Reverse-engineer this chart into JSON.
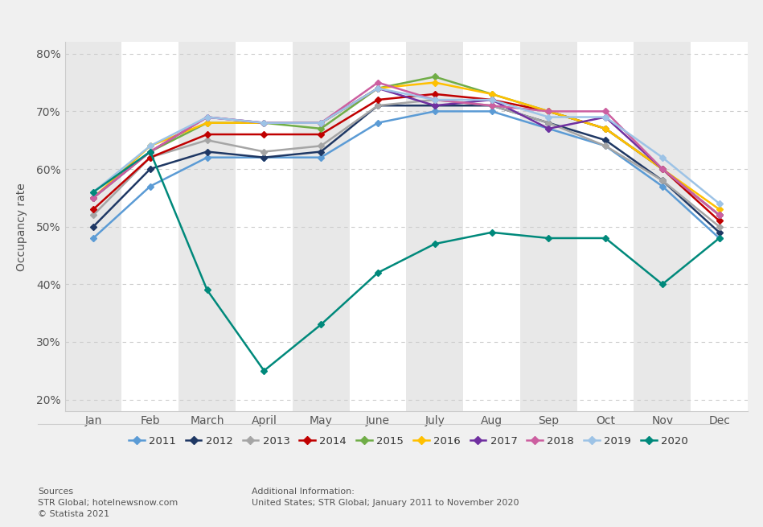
{
  "months": [
    "Jan",
    "Feb",
    "March",
    "April",
    "May",
    "June",
    "July",
    "Aug",
    "Sep",
    "Oct",
    "Nov",
    "Dec"
  ],
  "series": {
    "2011": [
      48,
      57,
      62,
      62,
      62,
      68,
      70,
      70,
      67,
      64,
      57,
      48
    ],
    "2012": [
      50,
      60,
      63,
      62,
      63,
      71,
      71,
      71,
      68,
      65,
      58,
      49
    ],
    "2013": [
      52,
      62,
      65,
      63,
      64,
      71,
      72,
      71,
      68,
      64,
      58,
      50
    ],
    "2014": [
      53,
      62,
      66,
      66,
      66,
      72,
      73,
      72,
      70,
      67,
      60,
      51
    ],
    "2015": [
      55,
      63,
      68,
      68,
      67,
      74,
      76,
      73,
      70,
      67,
      60,
      52
    ],
    "2016": [
      55,
      64,
      68,
      68,
      68,
      74,
      75,
      73,
      70,
      67,
      60,
      53
    ],
    "2017": [
      55,
      63,
      69,
      68,
      68,
      74,
      71,
      72,
      67,
      69,
      60,
      52
    ],
    "2018": [
      55,
      63,
      69,
      68,
      68,
      75,
      72,
      71,
      70,
      70,
      60,
      52
    ],
    "2019": [
      56,
      64,
      69,
      68,
      68,
      74,
      72,
      72,
      69,
      69,
      62,
      54
    ],
    "2020": [
      56,
      63,
      39,
      25,
      33,
      42,
      47,
      49,
      48,
      48,
      40,
      48
    ]
  },
  "colors": {
    "2011": "#5b9bd5",
    "2012": "#1f3864",
    "2013": "#a5a5a5",
    "2014": "#c00000",
    "2015": "#70ad47",
    "2016": "#ffc000",
    "2017": "#7030a0",
    "2018": "#cc5fa0",
    "2019": "#9dc3e6",
    "2020": "#00897b"
  },
  "ylabel": "Occupancy rate",
  "ylim_low": 18,
  "ylim_high": 82,
  "yticks": [
    20,
    30,
    40,
    50,
    60,
    70,
    80
  ],
  "ytick_labels": [
    "20%",
    "30%",
    "40%",
    "50%",
    "60%",
    "70%",
    "80%"
  ],
  "bg_color": "#f0f0f0",
  "plot_bg_color": "#ffffff",
  "source_text": "Sources\nSTR Global; hotelnewsnow.com\n© Statista 2021",
  "additional_text": "Additional Information:\nUnited States; STR Global; January 2011 to November 2020",
  "grid_color": "#cccccc",
  "shade_color": "#e8e8e8",
  "shaded_months": [
    0,
    2,
    4,
    6,
    8,
    10
  ]
}
